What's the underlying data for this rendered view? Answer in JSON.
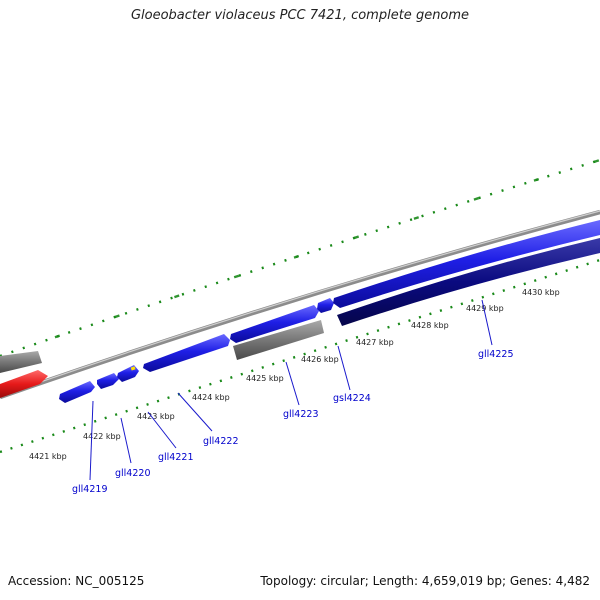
{
  "title": "Gloeobacter violaceus PCC 7421, complete genome",
  "footer": {
    "accession": "Accession: NC_005125",
    "summary": "Topology: circular; Length: 4,659,019 bp; Genes: 4,482"
  },
  "colors": {
    "tick": "#1a8a1a",
    "backbone": "#8c8c8c",
    "gene_forward": "#1f1fe6",
    "gene_reverse": "#0a0a80",
    "gene_other": "#777777",
    "gene_highlight": "#e61a1a",
    "label": "#0000cc"
  },
  "scale_labels": [
    {
      "id": "k4421",
      "text": "4421 kbp"
    },
    {
      "id": "k4422",
      "text": "4422 kbp"
    },
    {
      "id": "k4423",
      "text": "4423 kbp"
    },
    {
      "id": "k4424",
      "text": "4424 kbp"
    },
    {
      "id": "k4425",
      "text": "4425 kbp"
    },
    {
      "id": "k4426",
      "text": "4426 kbp"
    },
    {
      "id": "k4427",
      "text": "4427 kbp"
    },
    {
      "id": "k4428",
      "text": "4428 kbp"
    },
    {
      "id": "k4429",
      "text": "4429 kbp"
    },
    {
      "id": "k4430",
      "text": "4430 kbp"
    }
  ],
  "gene_labels": [
    {
      "id": "gll4219",
      "text": "gll4219"
    },
    {
      "id": "gll4220",
      "text": "gll4220"
    },
    {
      "id": "gll4221",
      "text": "gll4221"
    },
    {
      "id": "gll4222",
      "text": "gll4222"
    },
    {
      "id": "gll4223",
      "text": "gll4223"
    },
    {
      "id": "gsl4224",
      "text": "gsl4224"
    },
    {
      "id": "gll4225",
      "text": "gll4225"
    }
  ]
}
